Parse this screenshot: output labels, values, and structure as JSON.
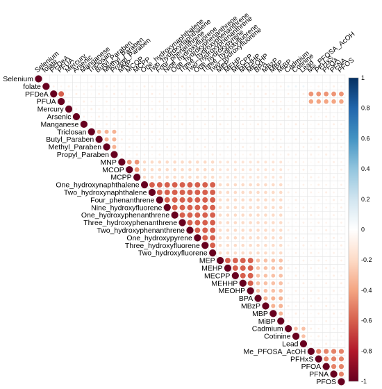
{
  "chart_data": {
    "type": "heatmap",
    "title": "",
    "variables": [
      "Selenium",
      "folate",
      "PFDeA",
      "PFUA",
      "Mercury",
      "Arsenic",
      "Manganese",
      "Triclosan",
      "Butyl_Paraben",
      "Methyl_Paraben",
      "Propyl_Paraben",
      "MNP",
      "MCOP",
      "MCPP",
      "One_hydroxynaphthalene",
      "Two_hydroxynaphthalene",
      "Four_phenanthrene",
      "Nine_hydroxyfluorene",
      "One_hydroxyphenanthrene",
      "Three_hydroxyphenanthrene",
      "Two_hydroxyphenanthrene",
      "One_hydroxypyrene",
      "Three_hydroxyfluorene",
      "Two_hydroxyfluorene",
      "MEP",
      "MEHP",
      "MECPP",
      "MEHHP",
      "MEOHP",
      "BPA",
      "MBzP",
      "MBP",
      "MiBP",
      "Cadmium",
      "Cotinine",
      "Lead",
      "Me_PFOSA_AcOH",
      "PFHxS",
      "PFOA",
      "PFNA",
      "PFOS"
    ],
    "colorbar": {
      "ticks": [
        "1",
        "0.8",
        "0.6",
        "0.4",
        "0.2",
        "0",
        "-0.2",
        "-0.4",
        "-0.6",
        "-0.8",
        "-1"
      ],
      "range": [
        -1,
        1
      ],
      "colors": [
        "#67001f",
        "#b2182b",
        "#d6604d",
        "#f4a582",
        "#fddbc7",
        "#ffffff",
        "#d1e5f0",
        "#92c5de",
        "#4393c3",
        "#2166ac",
        "#053061"
      ]
    },
    "strong_blocks": [
      {
        "variables": [
          "PFDeA",
          "PFUA"
        ],
        "r": 0.6
      },
      {
        "variables": [
          "Triclosan",
          "Butyl_Paraben",
          "Methyl_Paraben",
          "Propyl_Paraben"
        ],
        "r": 0.35
      },
      {
        "variables": [
          "MNP",
          "MCOP",
          "MCPP"
        ],
        "r": 0.45
      },
      {
        "variables": [
          "One_hydroxynaphthalene",
          "Two_hydroxynaphthalene",
          "Four_phenanthrene",
          "Nine_hydroxyfluorene",
          "One_hydroxyphenanthrene",
          "Three_hydroxyphenanthrene",
          "Two_hydroxyphenanthrene",
          "One_hydroxypyrene",
          "Three_hydroxyfluorene",
          "Two_hydroxyfluorene"
        ],
        "r": 0.6
      },
      {
        "variables": [
          "MEP",
          "MEHP",
          "MECPP",
          "MEHHP",
          "MEOHP"
        ],
        "r": 0.6
      },
      {
        "variables": [
          "BPA",
          "MBzP",
          "MBP",
          "MiBP"
        ],
        "r": 0.35
      },
      {
        "variables": [
          "Cadmium",
          "Cotinine",
          "Lead"
        ],
        "r": 0.3
      },
      {
        "variables": [
          "Me_PFOSA_AcOH",
          "PFHxS",
          "PFOA",
          "PFNA",
          "PFOS"
        ],
        "r": 0.5
      }
    ],
    "moderate_blocks": [
      {
        "rows": [
          "MEP",
          "MEHP",
          "MECPP",
          "MEHHP",
          "MEOHP",
          "BPA",
          "MBzP",
          "MBP",
          "MiBP"
        ],
        "cols": [
          "One_hydroxynaphthalene",
          "Two_hydroxynaphthalene",
          "Four_phenanthrene",
          "Nine_hydroxyfluorene",
          "One_hydroxyphenanthrene",
          "Three_hydroxyphenanthrene",
          "Two_hydroxyphenanthrene",
          "One_hydroxypyrene",
          "Three_hydroxyfluorene",
          "Two_hydroxyfluorene"
        ],
        "r": 0.2
      },
      {
        "rows": [
          "One_hydroxynaphthalene",
          "Two_hydroxynaphthalene",
          "Four_phenanthrene",
          "Nine_hydroxyfluorene",
          "One_hydroxyphenanthrene",
          "Three_hydroxyphenanthrene",
          "Two_hydroxyphenanthrene",
          "One_hydroxypyrene",
          "Three_hydroxyfluorene",
          "Two_hydroxyfluorene"
        ],
        "cols": [
          "MNP",
          "MCOP",
          "MCPP"
        ],
        "r": 0.2
      },
      {
        "rows": [
          "MEP",
          "MEHP",
          "MECPP",
          "MEHHP",
          "MEOHP",
          "BPA",
          "MBzP",
          "MBP",
          "MiBP"
        ],
        "cols": [
          "MNP",
          "MCOP",
          "MCPP"
        ],
        "r": 0.15
      },
      {
        "rows": [
          "MEHP",
          "MECPP",
          "MEHHP",
          "MEOHP",
          "BPA",
          "MBzP",
          "MBP",
          "MiBP"
        ],
        "cols": [
          "MEP",
          "MEHP",
          "MECPP",
          "MEHHP",
          "MEOHP"
        ],
        "r": 0.3
      }
    ],
    "lower_triangle": "blank",
    "diagonal": 1.0
  }
}
